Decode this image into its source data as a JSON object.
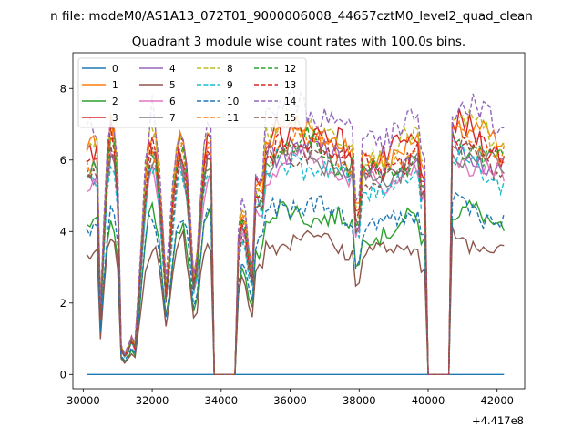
{
  "chart_data": {
    "type": "line",
    "suptitle": "n file: modeM0/AS1A13_072T01_9000006008_44657cztM0_level2_quad_clean",
    "title": "Quadrant 3 module wise count rates with 100.0s bins.",
    "xlabel": "",
    "ylabel": "",
    "x_offset_label": "+4.417e8",
    "xlim": [
      29700,
      42800
    ],
    "ylim": [
      -0.4,
      9.0
    ],
    "x_ticks": [
      30000,
      32000,
      34000,
      36000,
      38000,
      40000,
      42000
    ],
    "x_tick_labels": [
      "30000",
      "32000",
      "34000",
      "36000",
      "38000",
      "40000",
      "42000"
    ],
    "y_ticks": [
      0,
      2,
      4,
      6,
      8
    ],
    "y_tick_labels": [
      "0",
      "2",
      "4",
      "6",
      "8"
    ],
    "grid": false,
    "legend": {
      "placement": "top-left",
      "columns": 4
    },
    "x_range": [
      30100,
      42200
    ],
    "bin_seconds": 100,
    "gaps": [
      [
        33800,
        34400
      ],
      [
        40000,
        40600
      ]
    ],
    "series": [
      {
        "name": "0",
        "color": "#1f77b4",
        "dash": "solid",
        "level": 0.0,
        "amp": 0.0
      },
      {
        "name": "1",
        "color": "#ff7f0e",
        "dash": "solid",
        "level": 7.0,
        "amp": 0.35
      },
      {
        "name": "2",
        "color": "#2ca02c",
        "dash": "solid",
        "level": 4.6,
        "amp": 0.3
      },
      {
        "name": "3",
        "color": "#d62728",
        "dash": "solid",
        "level": 6.9,
        "amp": 0.45
      },
      {
        "name": "4",
        "color": "#9467bd",
        "dash": "solid",
        "level": 6.4,
        "amp": 0.35
      },
      {
        "name": "5",
        "color": "#8c564b",
        "dash": "solid",
        "level": 3.9,
        "amp": 0.25
      },
      {
        "name": "6",
        "color": "#e377c2",
        "dash": "solid",
        "level": 6.1,
        "amp": 0.3
      },
      {
        "name": "7",
        "color": "#7f7f7f",
        "dash": "solid",
        "level": 6.3,
        "amp": 0.3
      },
      {
        "name": "8",
        "color": "#bcbd22",
        "dash": "dashed",
        "level": 7.1,
        "amp": 0.4
      },
      {
        "name": "9",
        "color": "#17becf",
        "dash": "dashed",
        "level": 6.0,
        "amp": 0.35
      },
      {
        "name": "10",
        "color": "#1f77b4",
        "dash": "dashed",
        "level": 4.8,
        "amp": 0.3
      },
      {
        "name": "11",
        "color": "#ff7f0e",
        "dash": "dashed",
        "level": 6.7,
        "amp": 0.35
      },
      {
        "name": "12",
        "color": "#2ca02c",
        "dash": "dashed",
        "level": 6.5,
        "amp": 0.35
      },
      {
        "name": "13",
        "color": "#d62728",
        "dash": "dashed",
        "level": 6.6,
        "amp": 0.4
      },
      {
        "name": "14",
        "color": "#9467bd",
        "dash": "dashed",
        "level": 7.6,
        "amp": 0.45
      },
      {
        "name": "15",
        "color": "#8c564b",
        "dash": "dashed",
        "level": 6.3,
        "amp": 0.35
      }
    ]
  }
}
